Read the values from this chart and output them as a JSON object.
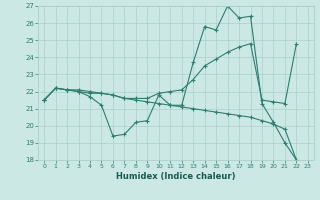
{
  "xlabel": "Humidex (Indice chaleur)",
  "bg_color": "#cce8e4",
  "grid_color": "#aad0cc",
  "line_color": "#2e7d6e",
  "ylim": [
    18,
    27
  ],
  "xlim": [
    -0.5,
    23.5
  ],
  "yticks": [
    18,
    19,
    20,
    21,
    22,
    23,
    24,
    25,
    26,
    27
  ],
  "xticks": [
    0,
    1,
    2,
    3,
    4,
    5,
    6,
    7,
    8,
    9,
    10,
    11,
    12,
    13,
    14,
    15,
    16,
    17,
    18,
    19,
    20,
    21,
    22,
    23
  ],
  "series": [
    {
      "x": [
        0,
        1,
        2,
        3,
        4,
        5,
        6,
        7,
        8,
        9,
        10,
        11,
        12,
        13,
        14,
        15,
        16,
        17,
        18,
        19,
        20,
        21,
        22
      ],
      "y": [
        21.5,
        22.2,
        22.1,
        22.0,
        21.7,
        21.2,
        19.4,
        19.5,
        20.2,
        20.3,
        21.8,
        21.2,
        21.2,
        23.7,
        25.8,
        25.6,
        27.0,
        26.3,
        26.4,
        21.3,
        20.2,
        19.0,
        18.0
      ]
    },
    {
      "x": [
        0,
        1,
        2,
        3,
        4,
        5,
        6,
        7,
        8,
        9,
        10,
        11,
        12,
        13,
        14,
        15,
        16,
        17,
        18,
        19,
        20,
        21,
        22
      ],
      "y": [
        21.5,
        22.2,
        22.1,
        22.1,
        22.0,
        21.9,
        21.8,
        21.6,
        21.6,
        21.6,
        21.9,
        22.0,
        22.1,
        22.7,
        23.5,
        23.9,
        24.3,
        24.6,
        24.8,
        21.5,
        21.4,
        21.3,
        24.8
      ]
    },
    {
      "x": [
        0,
        1,
        2,
        3,
        4,
        5,
        6,
        7,
        8,
        9,
        10,
        11,
        12,
        13,
        14,
        15,
        16,
        17,
        18,
        19,
        20,
        21,
        22
      ],
      "y": [
        21.5,
        22.2,
        22.1,
        22.0,
        21.9,
        21.9,
        21.8,
        21.6,
        21.5,
        21.4,
        21.3,
        21.2,
        21.1,
        21.0,
        20.9,
        20.8,
        20.7,
        20.6,
        20.5,
        20.3,
        20.1,
        19.8,
        18.0
      ]
    }
  ]
}
